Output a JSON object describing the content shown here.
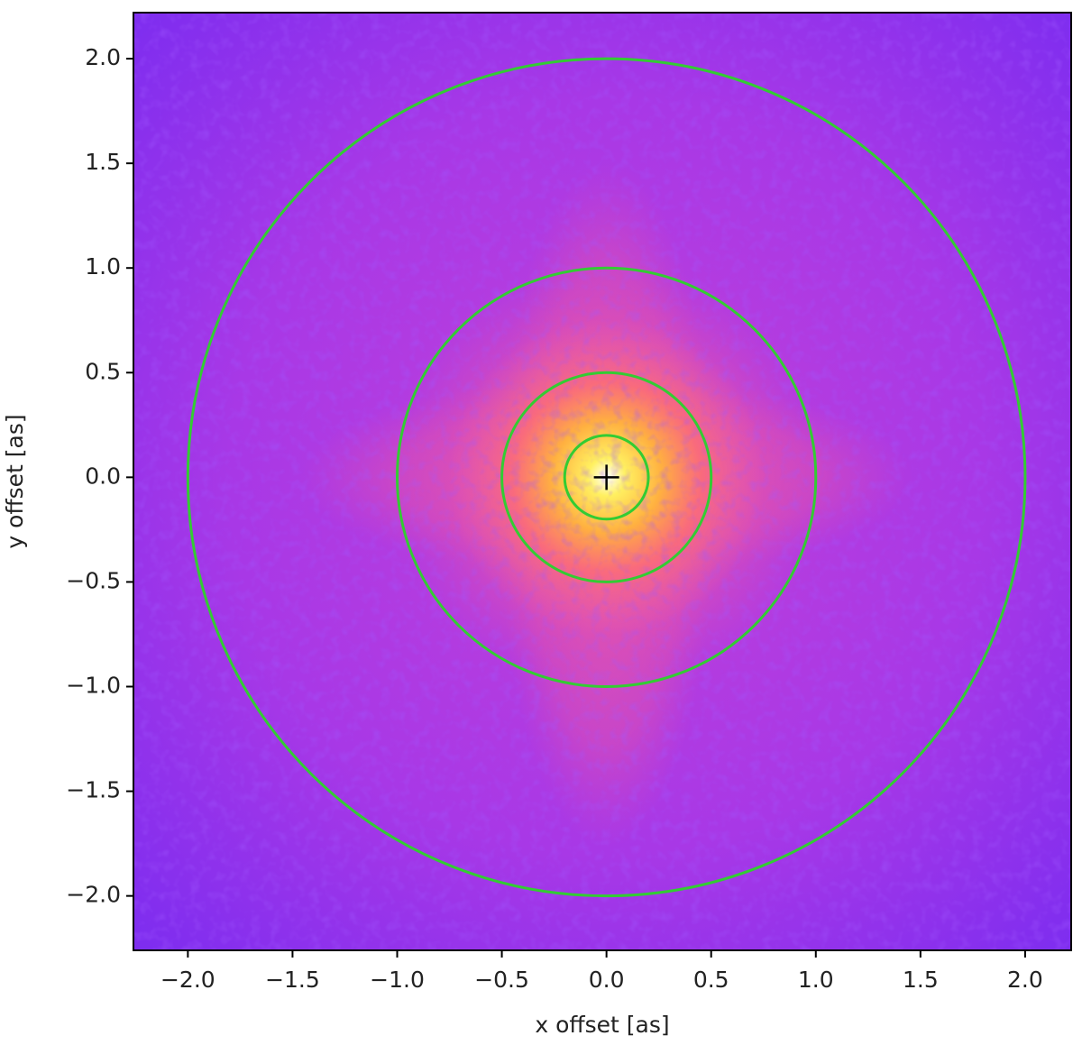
{
  "chart_data": {
    "type": "image",
    "xlabel": "x offset [as]",
    "ylabel": "y offset [as]",
    "xlim": [
      -2.26,
      2.22
    ],
    "ylim": [
      -2.26,
      2.22
    ],
    "xticks": [
      {
        "value": -2.0,
        "label": "−2.0"
      },
      {
        "value": -1.5,
        "label": "−1.5"
      },
      {
        "value": -1.0,
        "label": "−1.0"
      },
      {
        "value": -0.5,
        "label": "−0.5"
      },
      {
        "value": 0.0,
        "label": "0.0"
      },
      {
        "value": 0.5,
        "label": "0.5"
      },
      {
        "value": 1.0,
        "label": "1.0"
      },
      {
        "value": 1.5,
        "label": "1.5"
      },
      {
        "value": 2.0,
        "label": "2.0"
      }
    ],
    "yticks": [
      {
        "value": -2.0,
        "label": "−2.0"
      },
      {
        "value": -1.5,
        "label": "−1.5"
      },
      {
        "value": -1.0,
        "label": "−1.0"
      },
      {
        "value": -0.5,
        "label": "−0.5"
      },
      {
        "value": 0.0,
        "label": "0.0"
      },
      {
        "value": 0.5,
        "label": "0.5"
      },
      {
        "value": 1.0,
        "label": "1.0"
      },
      {
        "value": 1.5,
        "label": "1.5"
      },
      {
        "value": 2.0,
        "label": "2.0"
      }
    ],
    "circle_color": "#33cc33",
    "circles": [
      {
        "x": 0,
        "y": 0,
        "r": 0.2
      },
      {
        "x": 0,
        "y": 0,
        "r": 0.5
      },
      {
        "x": 0,
        "y": 0,
        "r": 1.0
      },
      {
        "x": 0,
        "y": 0,
        "r": 2.0
      }
    ],
    "marker": {
      "x": 0,
      "y": 0,
      "color": "#000000"
    }
  }
}
